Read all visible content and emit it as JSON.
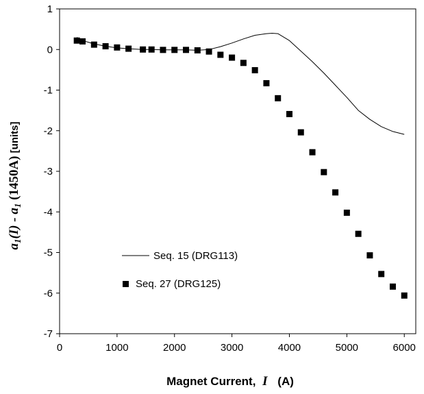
{
  "chart_data": {
    "type": "scatter",
    "title": "",
    "xlabel": "Magnet Current, I (A)",
    "xlabel_parts": {
      "text": "Magnet  Current,",
      "var": "I",
      "unit": "(A)"
    },
    "ylabel": "a1(I) - a1(1450A) [units]",
    "ylabel_parts": {
      "a1": "a",
      "sub1": "1",
      "var": "(I)",
      "mid": " - a",
      "sub2": "1",
      "ref": " (1450A)",
      "unit": " [units]"
    },
    "xlim": [
      0,
      6200
    ],
    "ylim": [
      -7,
      1
    ],
    "x_ticks": [
      0,
      1000,
      2000,
      3000,
      4000,
      5000,
      6000
    ],
    "y_ticks": [
      1,
      0,
      -1,
      -2,
      -3,
      -4,
      -5,
      -6,
      -7
    ],
    "grid": false,
    "legend_position": "lower-left",
    "series": [
      {
        "name": "Seq. 15 (DRG113)",
        "style": "line",
        "color": "#000000",
        "x": [
          300,
          400,
          600,
          800,
          1000,
          1200,
          1450,
          1600,
          1800,
          2000,
          2200,
          2400,
          2600,
          2800,
          3000,
          3200,
          3400,
          3600,
          3700,
          3800,
          4000,
          4200,
          4400,
          4600,
          4800,
          5000,
          5200,
          5400,
          5600,
          5800,
          6000
        ],
        "y": [
          0.3,
          0.22,
          0.14,
          0.08,
          0.04,
          0.02,
          0.0,
          0.0,
          -0.01,
          -0.01,
          -0.01,
          -0.02,
          0.0,
          0.07,
          0.16,
          0.26,
          0.35,
          0.39,
          0.4,
          0.39,
          0.22,
          -0.04,
          -0.3,
          -0.58,
          -0.88,
          -1.18,
          -1.5,
          -1.72,
          -1.9,
          -2.02,
          -2.09
        ]
      },
      {
        "name": "Seq. 27 (DRG125)",
        "style": "marker",
        "marker": "square",
        "color": "#000000",
        "x": [
          300,
          400,
          600,
          800,
          1000,
          1200,
          1450,
          1600,
          1800,
          2000,
          2200,
          2400,
          2600,
          2800,
          3000,
          3200,
          3400,
          3600,
          3800,
          4000,
          4200,
          4400,
          4600,
          4800,
          5000,
          5200,
          5400,
          5600,
          5800,
          6000
        ],
        "y": [
          0.22,
          0.2,
          0.12,
          0.08,
          0.05,
          0.02,
          0.0,
          0.0,
          -0.01,
          -0.01,
          -0.01,
          -0.02,
          -0.05,
          -0.13,
          -0.2,
          -0.33,
          -0.51,
          -0.83,
          -1.2,
          -1.59,
          -2.04,
          -2.53,
          -3.02,
          -3.52,
          -4.02,
          -4.54,
          -5.07,
          -5.53,
          -5.84,
          -6.06
        ]
      }
    ]
  }
}
